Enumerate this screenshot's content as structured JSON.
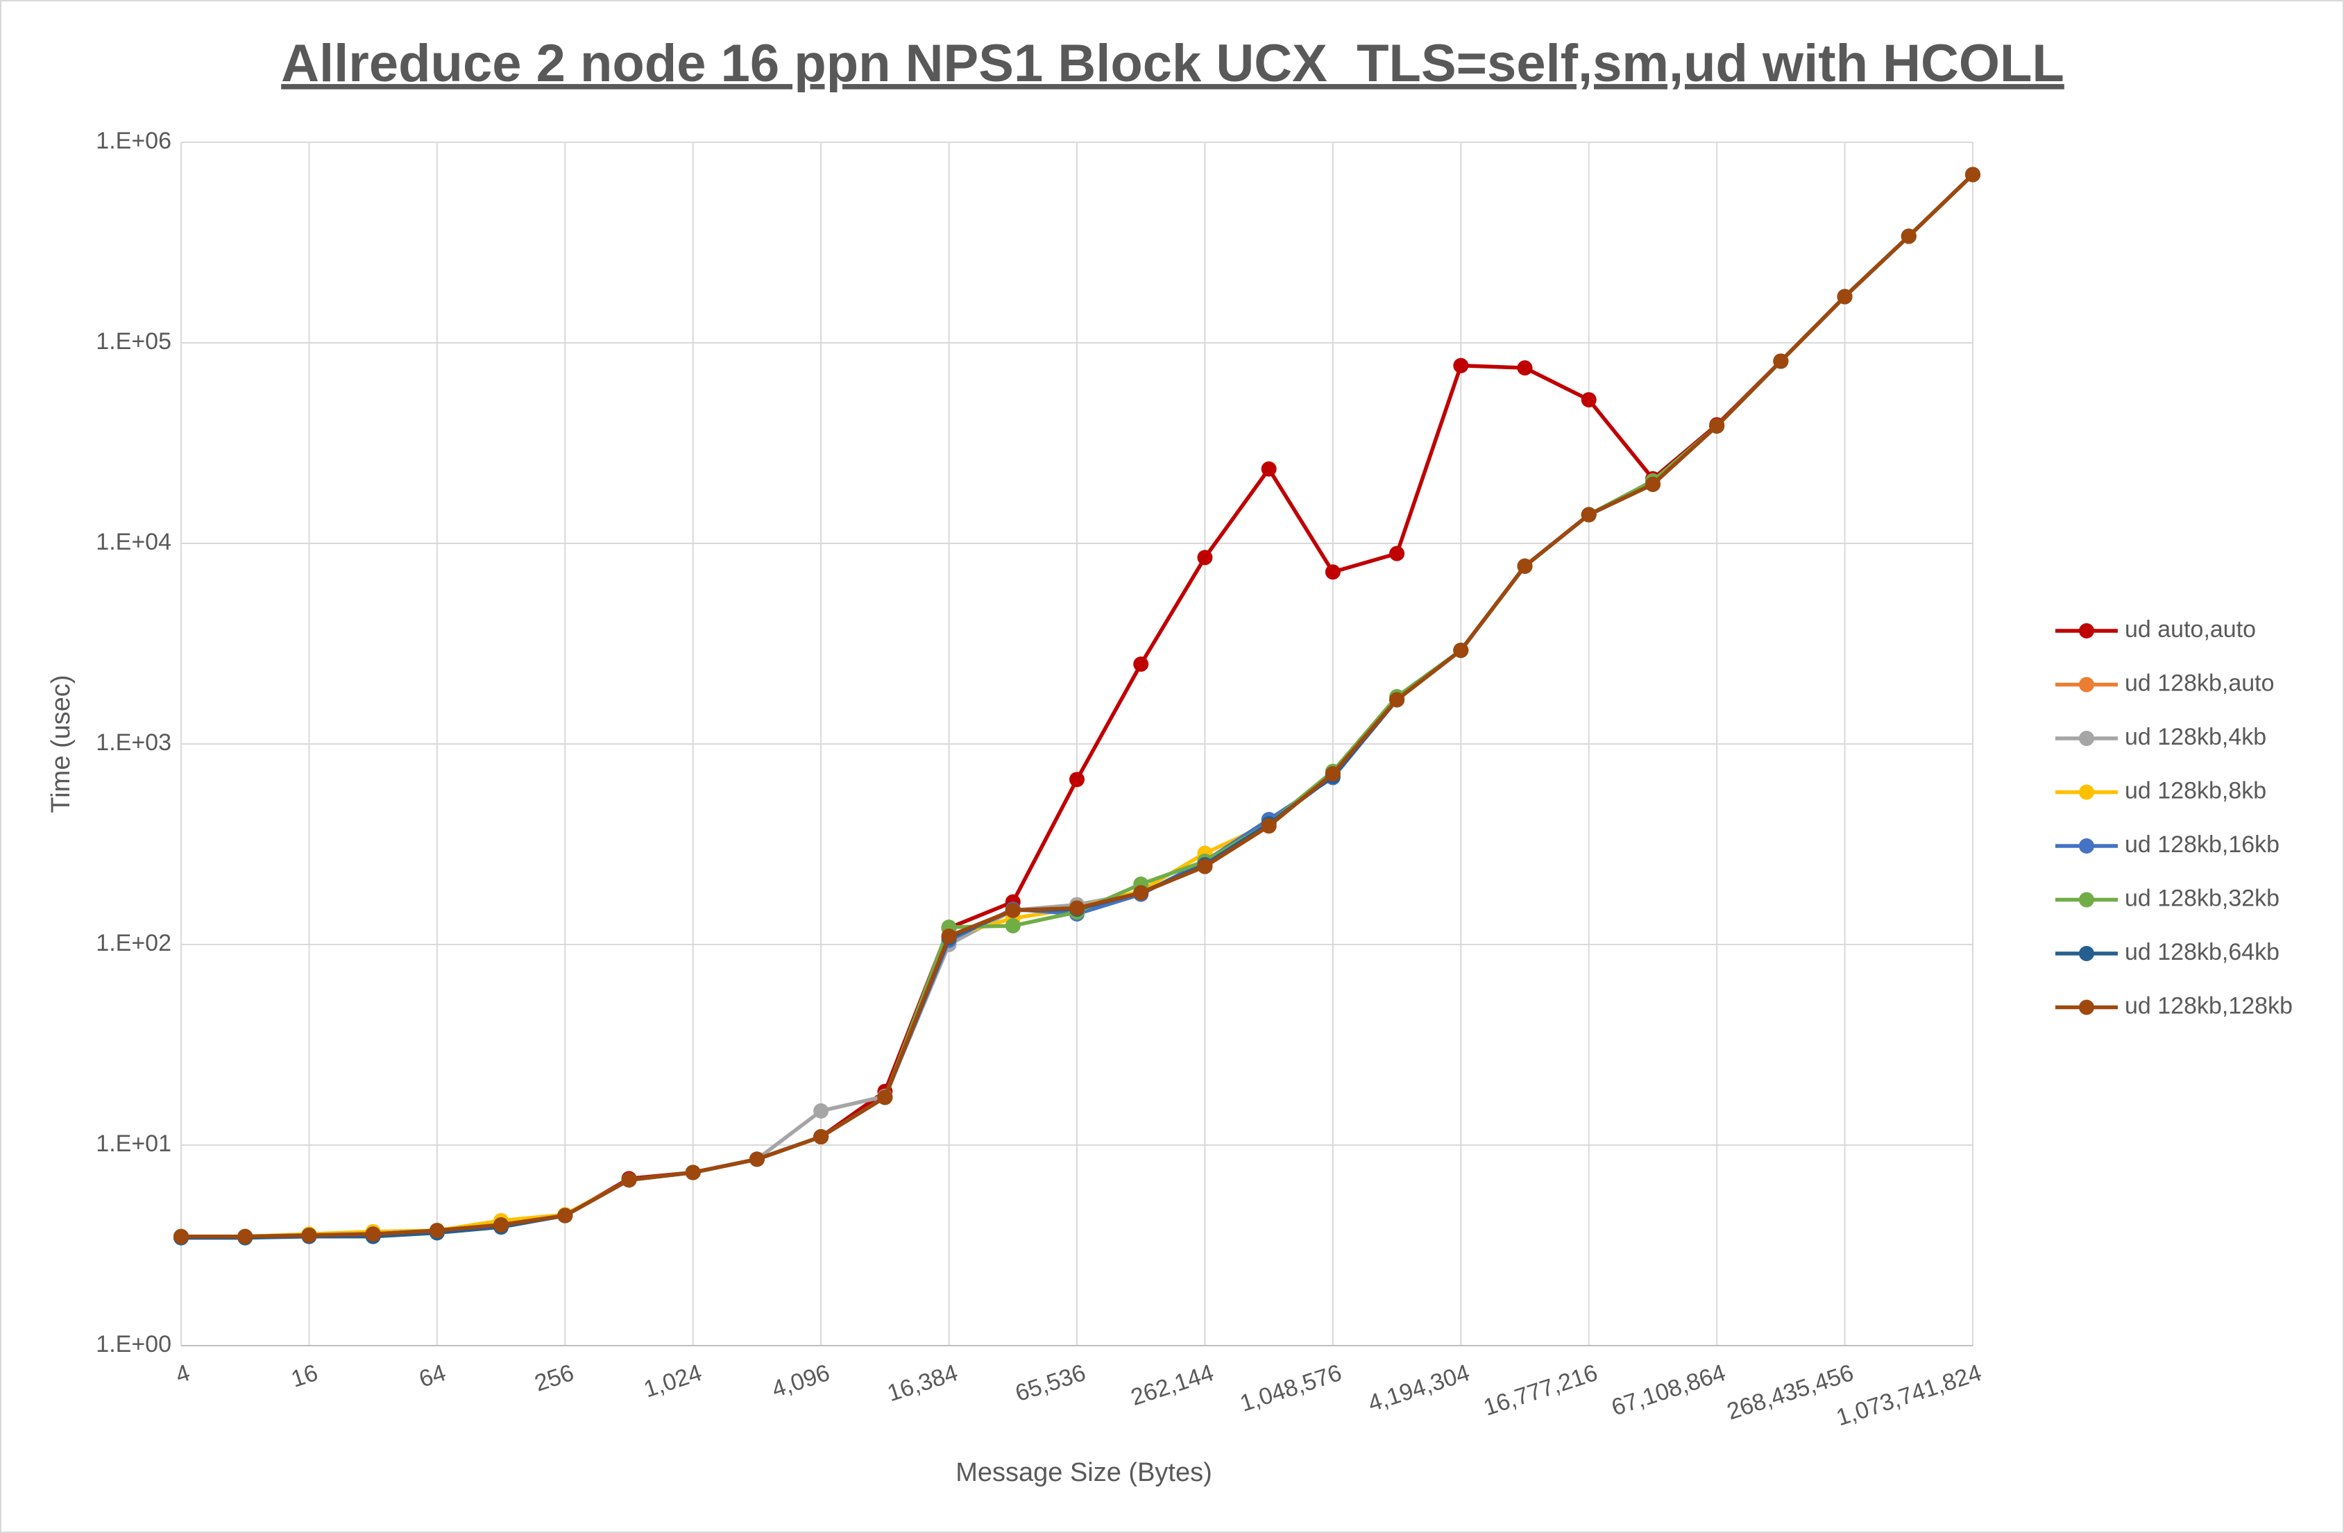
{
  "chart_data": {
    "type": "line",
    "title": "Allreduce 2 node 16 ppn NPS1 Block UCX_TLS=self,sm,ud with HCOLL",
    "x_label": "Message Size (Bytes)",
    "y_label": "Time (usec)",
    "log_x": true,
    "log_y": true,
    "grid": true,
    "legend": "right",
    "x": [
      4,
      8,
      16,
      32,
      64,
      128,
      256,
      512,
      1024,
      2048,
      4096,
      8192,
      16384,
      32768,
      65536,
      131072,
      262144,
      524288,
      1048576,
      2097152,
      4194304,
      8388608,
      16777216,
      33554432,
      67108864,
      134217728,
      268435456,
      536870912,
      1073741824
    ],
    "xlim": [
      4,
      1073741824
    ],
    "xticks": [
      4,
      16,
      64,
      256,
      {
        "value": 1024,
        "label": "1,024"
      },
      {
        "value": 4096,
        "label": "4,096"
      },
      {
        "value": 16384,
        "label": "16,384"
      },
      {
        "value": 65536,
        "label": "65,536"
      },
      {
        "value": 262144,
        "label": "262,144"
      },
      {
        "value": 1048576,
        "label": "1,048,576"
      },
      {
        "value": 4194304,
        "label": "4,194,304"
      },
      {
        "value": 16777216,
        "label": "16,777,216"
      },
      {
        "value": 67108864,
        "label": "67,108,864"
      },
      {
        "value": 268435456,
        "label": "268,435,456"
      },
      {
        "value": 1073741824,
        "label": "1,073,741,824"
      }
    ],
    "ylim": [
      1,
      1000000
    ],
    "yticks": [
      {
        "value": 1,
        "label": "1.E+00"
      },
      {
        "value": 10,
        "label": "1.E+01"
      },
      {
        "value": 100,
        "label": "1.E+02"
      },
      {
        "value": 1000,
        "label": "1.E+03"
      },
      {
        "value": 10000,
        "label": "1.E+04"
      },
      {
        "value": 100000,
        "label": "1.E+05"
      },
      {
        "value": 1000000,
        "label": "1.E+06"
      }
    ],
    "series": [
      {
        "name": "ud auto,auto",
        "color": "#c00000",
        "values": [
          3.5,
          3.5,
          3.55,
          3.6,
          3.75,
          4.0,
          4.45,
          6.8,
          7.3,
          8.5,
          11,
          18.5,
          121,
          163,
          665,
          2500,
          8500,
          23500,
          7200,
          8900,
          77000,
          75000,
          52000,
          21000,
          39000,
          81000,
          170000,
          340000,
          690000
        ]
      },
      {
        "name": "ud 128kb,auto",
        "color": "#ed7d31",
        "values": [
          3.5,
          3.5,
          3.55,
          3.6,
          3.75,
          4.1,
          4.45,
          6.7,
          7.3,
          8.5,
          11,
          17.3,
          110,
          148,
          152,
          181,
          245,
          390,
          710,
          1660,
          2930,
          7700,
          13900,
          19700,
          38500,
          81000,
          170000,
          340000,
          690000
        ]
      },
      {
        "name": "ud 128kb,4kb",
        "color": "#a5a5a5",
        "values": [
          3.5,
          3.5,
          3.55,
          3.6,
          3.75,
          4.0,
          4.45,
          6.7,
          7.3,
          8.5,
          14.8,
          17.5,
          100,
          148,
          158,
          181,
          245,
          390,
          710,
          1660,
          2930,
          7700,
          13900,
          19700,
          38500,
          81000,
          170000,
          340000,
          690000
        ]
      },
      {
        "name": "ud 128kb,8kb",
        "color": "#ffc000",
        "values": [
          3.5,
          3.5,
          3.6,
          3.7,
          3.75,
          4.2,
          4.5,
          6.7,
          7.3,
          8.5,
          11,
          17.3,
          110,
          135,
          152,
          185,
          285,
          400,
          710,
          1660,
          2930,
          7700,
          13900,
          19700,
          38500,
          81000,
          170000,
          340000,
          690000
        ]
      },
      {
        "name": "ud 128kb,16kb",
        "color": "#4472c4",
        "values": [
          3.5,
          3.5,
          3.55,
          3.6,
          3.75,
          4.0,
          4.45,
          6.7,
          7.3,
          8.5,
          11,
          17.3,
          105,
          150,
          142,
          178,
          260,
          420,
          680,
          1660,
          2930,
          7700,
          13900,
          19700,
          38500,
          81000,
          170000,
          340000,
          690000
        ]
      },
      {
        "name": "ud 128kb,32kb",
        "color": "#70ad47",
        "values": [
          3.5,
          3.5,
          3.55,
          3.6,
          3.75,
          4.0,
          4.45,
          6.7,
          7.3,
          8.5,
          11,
          17.3,
          122,
          124,
          145,
          200,
          260,
          400,
          730,
          1720,
          2930,
          7700,
          13900,
          20500,
          38500,
          81000,
          170000,
          340000,
          690000
        ]
      },
      {
        "name": "ud 128kb,64kb",
        "color": "#255e91",
        "values": [
          3.45,
          3.45,
          3.5,
          3.5,
          3.65,
          3.9,
          4.45,
          6.7,
          7.3,
          8.5,
          11,
          17.3,
          108,
          148,
          150,
          181,
          250,
          400,
          690,
          1660,
          2930,
          7700,
          13900,
          19700,
          38500,
          81000,
          170000,
          340000,
          690000
        ]
      },
      {
        "name": "ud 128kb,128kb",
        "color": "#9e480e",
        "values": [
          3.5,
          3.5,
          3.55,
          3.6,
          3.75,
          4.0,
          4.45,
          6.7,
          7.3,
          8.5,
          11,
          17.3,
          110,
          148,
          152,
          181,
          245,
          390,
          710,
          1660,
          2930,
          7700,
          13900,
          19700,
          38500,
          81000,
          170000,
          340000,
          690000
        ]
      }
    ]
  }
}
